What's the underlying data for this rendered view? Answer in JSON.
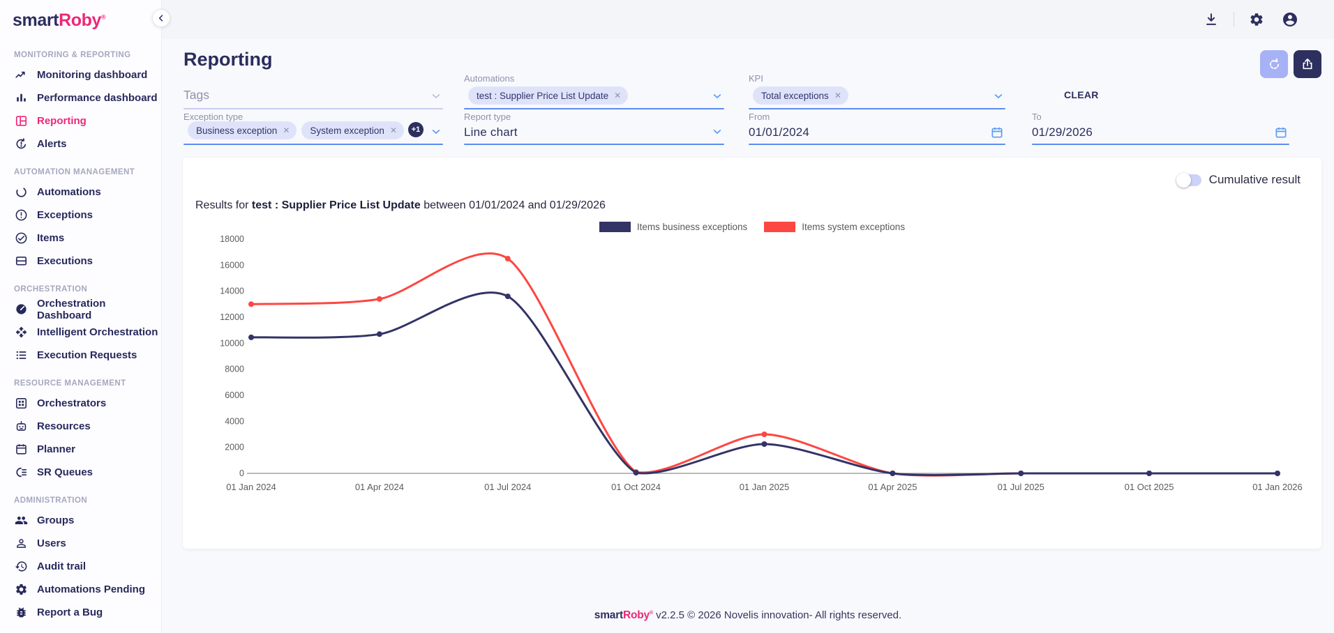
{
  "brand": {
    "prefix": "smart",
    "suffix": "Roby",
    "registered": "®"
  },
  "page": {
    "title": "Reporting"
  },
  "ui": {
    "chip_remove_glyph": "✕"
  },
  "topbar": {
    "icons": [
      "download-icon",
      "settings-icon",
      "account-icon"
    ]
  },
  "sidebar": {
    "sections": [
      {
        "label": "MONITORING & REPORTING",
        "items": [
          {
            "label": "Monitoring dashboard",
            "icon": "monitoring-dashboard-icon",
            "active": false
          },
          {
            "label": "Performance dashboard",
            "icon": "performance-dashboard-icon",
            "active": false
          },
          {
            "label": "Reporting",
            "icon": "reporting-icon",
            "active": true
          },
          {
            "label": "Alerts",
            "icon": "alerts-icon",
            "active": false
          }
        ]
      },
      {
        "label": "AUTOMATION MANAGEMENT",
        "items": [
          {
            "label": "Automations",
            "icon": "automations-icon",
            "active": false
          },
          {
            "label": "Exceptions",
            "icon": "exceptions-icon",
            "active": false
          },
          {
            "label": "Items",
            "icon": "items-icon",
            "active": false
          },
          {
            "label": "Executions",
            "icon": "executions-icon",
            "active": false
          }
        ]
      },
      {
        "label": "ORCHESTRATION",
        "items": [
          {
            "label": "Orchestration Dashboard",
            "icon": "orchestration-dashboard-icon",
            "active": false
          },
          {
            "label": "Intelligent Orchestration",
            "icon": "intelligent-orchestration-icon",
            "active": false
          },
          {
            "label": "Execution Requests",
            "icon": "execution-requests-icon",
            "active": false
          }
        ]
      },
      {
        "label": "RESOURCE MANAGEMENT",
        "items": [
          {
            "label": "Orchestrators",
            "icon": "orchestrators-icon",
            "active": false
          },
          {
            "label": "Resources",
            "icon": "resources-icon",
            "active": false
          },
          {
            "label": "Planner",
            "icon": "planner-icon",
            "active": false
          },
          {
            "label": "SR Queues",
            "icon": "sr-queues-icon",
            "active": false
          }
        ]
      },
      {
        "label": "ADMINISTRATION",
        "items": [
          {
            "label": "Groups",
            "icon": "groups-icon",
            "active": false
          },
          {
            "label": "Users",
            "icon": "users-icon",
            "active": false
          },
          {
            "label": "Audit trail",
            "icon": "audit-trail-icon",
            "active": false
          },
          {
            "label": "Automations Pending",
            "icon": "automations-pending-icon",
            "active": false
          },
          {
            "label": "Report a Bug",
            "icon": "report-a-bug-icon",
            "active": false
          }
        ]
      }
    ]
  },
  "filters": {
    "tags": {
      "label": "Tags"
    },
    "exception_type": {
      "label": "Exception type",
      "chips": [
        "Business exception",
        "System exception"
      ],
      "more_badge": "+1"
    },
    "automations": {
      "label": "Automations",
      "chips": [
        "test : Supplier Price List Update"
      ]
    },
    "report_type": {
      "label": "Report type",
      "value": "Line chart"
    },
    "kpi": {
      "label": "KPI",
      "chips": [
        "Total exceptions"
      ]
    },
    "from": {
      "label": "From",
      "value": "01/01/2024"
    },
    "to": {
      "label": "To",
      "value": "01/29/2026"
    },
    "clear_label": "CLEAR"
  },
  "chart_card": {
    "toggle_label": "Cumulative result",
    "results_prefix": "Results for ",
    "results_automation": "test : Supplier Price List Update",
    "results_suffix": " between 01/01/2024 and 01/29/2026"
  },
  "chart_data": {
    "type": "line",
    "title": "Results for test : Supplier Price List Update between 01/01/2024 and 01/29/2026",
    "categories": [
      "01 Jan 2024",
      "01 Apr 2024",
      "01 Jul 2024",
      "01 Oct 2024",
      "01 Jan 2025",
      "01 Apr 2025",
      "01 Jul 2025",
      "01 Oct 2025",
      "01 Jan 2026"
    ],
    "series": [
      {
        "name": "Items business exceptions",
        "color": "#333366",
        "values": [
          10450,
          10700,
          13600,
          50,
          2250,
          0,
          0,
          0,
          0
        ]
      },
      {
        "name": "Items system exceptions",
        "color": "#fc4742",
        "values": [
          13000,
          13400,
          16500,
          100,
          3000,
          0,
          0,
          0,
          0
        ]
      }
    ],
    "xlabel": "",
    "ylabel": "",
    "ylim": [
      0,
      18000
    ],
    "ytick_step": 2000,
    "grid": false,
    "legend_position": "top"
  },
  "footer": {
    "text": " v2.2.5 © 2026 Novelis innovation- All rights reserved."
  }
}
